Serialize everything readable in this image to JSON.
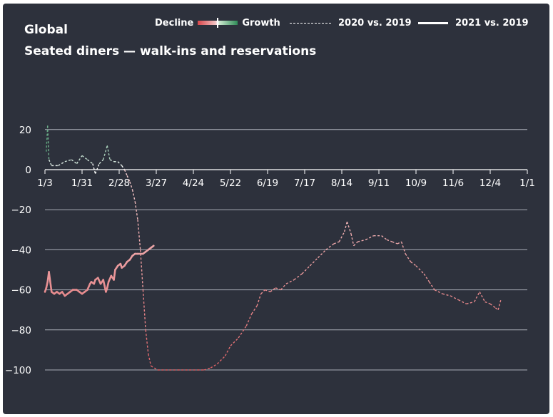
{
  "header": {
    "title": "Global",
    "subtitle": "Seated diners — walk-ins and reservations"
  },
  "legend": {
    "decline_label": "Decline",
    "growth_label": "Growth",
    "series_2020_label": "2020 vs. 2019",
    "series_2021_label": "2021 vs. 2019"
  },
  "colors": {
    "background": "#2d313c",
    "decline_strong": "#d9454a",
    "decline_light": "#f2c4c4",
    "growth_light": "#c8e6cc",
    "growth_strong": "#2e8b57",
    "gridline": "#a9adb6",
    "text": "#ffffff"
  },
  "chart_data": {
    "type": "line",
    "title": "Global",
    "subtitle": "Seated diners — walk-ins and reservations",
    "xlabel": "",
    "ylabel": "",
    "x_ticks": [
      "1/3",
      "1/31",
      "2/28",
      "3/27",
      "4/24",
      "5/22",
      "6/19",
      "7/17",
      "8/14",
      "9/11",
      "10/9",
      "11/6",
      "12/4",
      "1/1"
    ],
    "y_ticks": [
      20,
      0,
      -20,
      -40,
      -60,
      -80,
      -100
    ],
    "ylim": [
      -100,
      20
    ],
    "xlim_days": [
      0,
      364
    ],
    "grid": "horizontal",
    "legend_position": "top-right",
    "color_scale": "diverging: red for decline, white at 0, green for growth",
    "series": [
      {
        "name": "2020 vs. 2019",
        "style": "dashed",
        "points": [
          [
            1,
            9
          ],
          [
            2,
            22
          ],
          [
            3,
            5
          ],
          [
            5,
            2
          ],
          [
            10,
            2
          ],
          [
            15,
            4
          ],
          [
            20,
            5
          ],
          [
            24,
            3
          ],
          [
            28,
            7
          ],
          [
            32,
            5
          ],
          [
            36,
            3
          ],
          [
            38,
            -2
          ],
          [
            41,
            3
          ],
          [
            44,
            5
          ],
          [
            47,
            12
          ],
          [
            49,
            5
          ],
          [
            52,
            4
          ],
          [
            55,
            4
          ],
          [
            58,
            2
          ],
          [
            60,
            0
          ],
          [
            62,
            -3
          ],
          [
            64,
            -6
          ],
          [
            66,
            -10
          ],
          [
            68,
            -16
          ],
          [
            70,
            -25
          ],
          [
            72,
            -40
          ],
          [
            74,
            -60
          ],
          [
            76,
            -80
          ],
          [
            78,
            -92
          ],
          [
            80,
            -98
          ],
          [
            85,
            -100
          ],
          [
            100,
            -100
          ],
          [
            115,
            -100
          ],
          [
            120,
            -100
          ],
          [
            125,
            -99
          ],
          [
            130,
            -97
          ],
          [
            136,
            -93
          ],
          [
            140,
            -88
          ],
          [
            146,
            -84
          ],
          [
            152,
            -78
          ],
          [
            156,
            -72
          ],
          [
            160,
            -68
          ],
          [
            163,
            -62
          ],
          [
            166,
            -60
          ],
          [
            170,
            -61
          ],
          [
            174,
            -59
          ],
          [
            178,
            -60
          ],
          [
            182,
            -57
          ],
          [
            188,
            -55
          ],
          [
            194,
            -52
          ],
          [
            200,
            -48
          ],
          [
            206,
            -44
          ],
          [
            212,
            -40
          ],
          [
            218,
            -37
          ],
          [
            222,
            -36
          ],
          [
            226,
            -31
          ],
          [
            228,
            -26
          ],
          [
            231,
            -32
          ],
          [
            233,
            -38
          ],
          [
            236,
            -36
          ],
          [
            242,
            -35
          ],
          [
            248,
            -33
          ],
          [
            254,
            -33
          ],
          [
            258,
            -35
          ],
          [
            262,
            -36
          ],
          [
            266,
            -37
          ],
          [
            269,
            -36
          ],
          [
            272,
            -42
          ],
          [
            276,
            -46
          ],
          [
            280,
            -48
          ],
          [
            286,
            -52
          ],
          [
            290,
            -56
          ],
          [
            294,
            -60
          ],
          [
            300,
            -62
          ],
          [
            306,
            -63
          ],
          [
            312,
            -65
          ],
          [
            318,
            -67
          ],
          [
            324,
            -66
          ],
          [
            328,
            -61
          ],
          [
            332,
            -66
          ],
          [
            336,
            -67
          ],
          [
            340,
            -69
          ],
          [
            342,
            -70
          ],
          [
            344,
            -65
          ]
        ]
      },
      {
        "name": "2021 vs. 2019",
        "style": "solid",
        "points": [
          [
            0,
            -61
          ],
          [
            1,
            -59
          ],
          [
            2,
            -56
          ],
          [
            3,
            -51
          ],
          [
            4,
            -56
          ],
          [
            5,
            -61
          ],
          [
            7,
            -62
          ],
          [
            9,
            -61
          ],
          [
            11,
            -62
          ],
          [
            13,
            -61
          ],
          [
            15,
            -63
          ],
          [
            17,
            -62
          ],
          [
            19,
            -61
          ],
          [
            21,
            -60
          ],
          [
            24,
            -60
          ],
          [
            26,
            -61
          ],
          [
            28,
            -62
          ],
          [
            30,
            -61
          ],
          [
            32,
            -60
          ],
          [
            34,
            -57
          ],
          [
            35,
            -56
          ],
          [
            37,
            -57
          ],
          [
            38,
            -55
          ],
          [
            40,
            -54
          ],
          [
            42,
            -57
          ],
          [
            44,
            -55
          ],
          [
            45,
            -58
          ],
          [
            46,
            -61
          ],
          [
            47,
            -59
          ],
          [
            48,
            -56
          ],
          [
            50,
            -53
          ],
          [
            52,
            -55
          ],
          [
            53,
            -50
          ],
          [
            55,
            -48
          ],
          [
            57,
            -47
          ],
          [
            58,
            -49
          ],
          [
            60,
            -48
          ],
          [
            62,
            -46
          ],
          [
            64,
            -45
          ],
          [
            66,
            -43
          ],
          [
            68,
            -42
          ],
          [
            70,
            -42
          ],
          [
            72,
            -42
          ],
          [
            74,
            -42
          ],
          [
            76,
            -41
          ],
          [
            78,
            -40
          ],
          [
            80,
            -39
          ],
          [
            82,
            -38
          ]
        ]
      }
    ]
  }
}
